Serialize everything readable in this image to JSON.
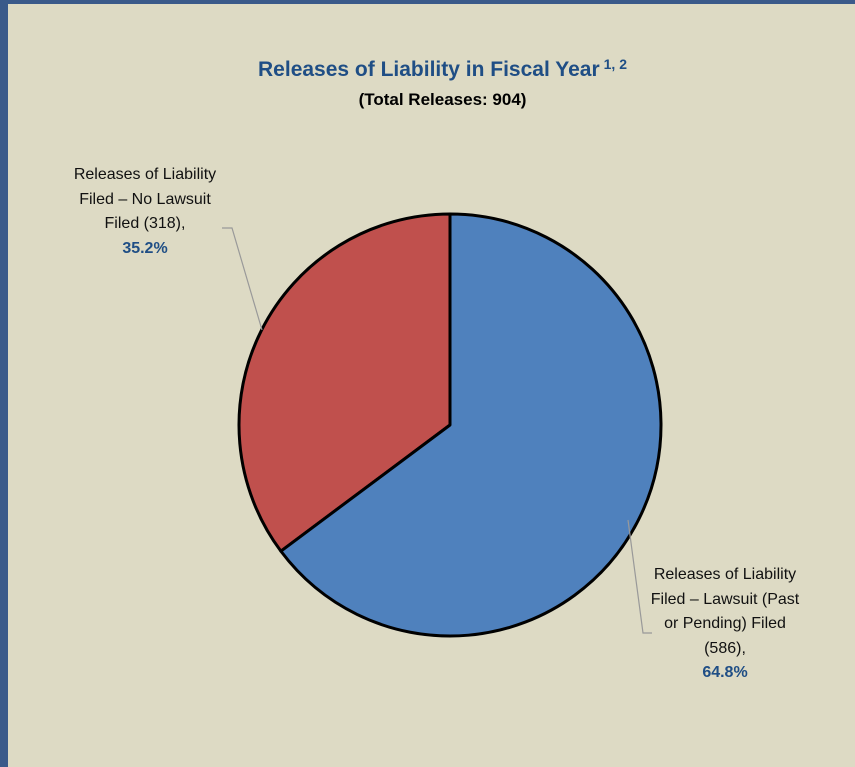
{
  "chart": {
    "title": "Releases of Liability in Fiscal Year",
    "title_superscript": "1, 2",
    "subtitle": "(Total Releases: 904)"
  },
  "chart_data": {
    "type": "pie",
    "title": "Releases of Liability in Fiscal Year",
    "subtitle": "(Total Releases: 904)",
    "total": 904,
    "slices": [
      {
        "label": "Releases of Liability Filed – No Lawsuit Filed (318),",
        "count": 318,
        "percent_label": "35.2%",
        "value": 35.2,
        "color": "#c0504d"
      },
      {
        "label": "Releases of Liability Filed – Lawsuit (Past or Pending) Filed (586),",
        "count": 586,
        "percent_label": "64.8%",
        "value": 64.8,
        "color": "#4f81bd"
      }
    ],
    "legend": "none"
  },
  "colors": {
    "background": "#dddac4",
    "border": "#3a5a8a",
    "title": "#1f4e85"
  }
}
